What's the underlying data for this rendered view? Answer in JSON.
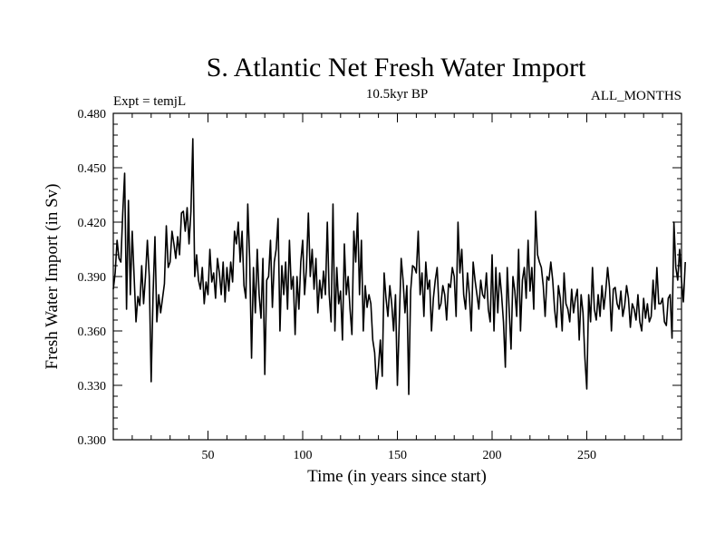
{
  "chart_data": {
    "type": "line",
    "title": "S. Atlantic Net Fresh Water Import",
    "subtitle_left": "Expt = temjL",
    "subtitle_center": "10.5kyr BP",
    "subtitle_right": "ALL_MONTHS",
    "xlabel": "Time (in years since start)",
    "ylabel": "Fresh Water Import (in Sv)",
    "xlim": [
      0,
      300
    ],
    "ylim": [
      0.3,
      0.48
    ],
    "xticks": [
      50,
      100,
      150,
      200,
      250
    ],
    "yticks": [
      "0.300",
      "0.330",
      "0.360",
      "0.390",
      "0.420",
      "0.450",
      "0.480"
    ],
    "series": [
      {
        "name": "Fresh Water Import",
        "color": "#000000",
        "x_start": 0,
        "x_step": 1,
        "values": [
          0.383,
          0.392,
          0.41,
          0.4,
          0.398,
          0.425,
          0.447,
          0.372,
          0.432,
          0.38,
          0.415,
          0.39,
          0.365,
          0.379,
          0.374,
          0.396,
          0.375,
          0.39,
          0.41,
          0.39,
          0.332,
          0.38,
          0.412,
          0.365,
          0.38,
          0.37,
          0.378,
          0.386,
          0.418,
          0.395,
          0.398,
          0.415,
          0.408,
          0.4,
          0.412,
          0.402,
          0.425,
          0.426,
          0.415,
          0.428,
          0.408,
          0.426,
          0.466,
          0.39,
          0.402,
          0.388,
          0.383,
          0.395,
          0.375,
          0.387,
          0.38,
          0.405,
          0.387,
          0.392,
          0.378,
          0.4,
          0.392,
          0.38,
          0.398,
          0.376,
          0.395,
          0.382,
          0.398,
          0.387,
          0.415,
          0.408,
          0.42,
          0.398,
          0.415,
          0.385,
          0.378,
          0.43,
          0.4,
          0.345,
          0.395,
          0.37,
          0.405,
          0.38,
          0.367,
          0.4,
          0.336,
          0.388,
          0.39,
          0.41,
          0.373,
          0.398,
          0.405,
          0.422,
          0.36,
          0.396,
          0.38,
          0.398,
          0.372,
          0.41,
          0.383,
          0.39,
          0.358,
          0.39,
          0.372,
          0.398,
          0.41,
          0.38,
          0.395,
          0.425,
          0.39,
          0.405,
          0.383,
          0.4,
          0.37,
          0.388,
          0.378,
          0.393,
          0.38,
          0.42,
          0.38,
          0.365,
          0.43,
          0.36,
          0.395,
          0.375,
          0.382,
          0.355,
          0.408,
          0.38,
          0.39,
          0.372,
          0.358,
          0.415,
          0.398,
          0.425,
          0.38,
          0.41,
          0.36,
          0.385,
          0.373,
          0.38,
          0.375,
          0.355,
          0.348,
          0.328,
          0.34,
          0.355,
          0.335,
          0.392,
          0.378,
          0.368,
          0.385,
          0.375,
          0.36,
          0.38,
          0.33,
          0.365,
          0.4,
          0.388,
          0.37,
          0.385,
          0.325,
          0.382,
          0.396,
          0.395,
          0.392,
          0.415,
          0.38,
          0.392,
          0.368,
          0.398,
          0.383,
          0.388,
          0.36,
          0.378,
          0.388,
          0.395,
          0.372,
          0.375,
          0.385,
          0.38,
          0.366,
          0.386,
          0.384,
          0.395,
          0.39,
          0.368,
          0.42,
          0.392,
          0.405,
          0.38,
          0.372,
          0.392,
          0.38,
          0.36,
          0.398,
          0.388,
          0.38,
          0.372,
          0.388,
          0.38,
          0.378,
          0.392,
          0.372,
          0.365,
          0.402,
          0.36,
          0.395,
          0.37,
          0.392,
          0.38,
          0.365,
          0.34,
          0.395,
          0.372,
          0.35,
          0.39,
          0.382,
          0.368,
          0.405,
          0.36,
          0.388,
          0.395,
          0.378,
          0.41,
          0.382,
          0.395,
          0.372,
          0.426,
          0.402,
          0.398,
          0.395,
          0.385,
          0.368,
          0.39,
          0.388,
          0.398,
          0.388,
          0.372,
          0.362,
          0.385,
          0.378,
          0.36,
          0.392,
          0.375,
          0.372,
          0.365,
          0.383,
          0.37,
          0.378,
          0.383,
          0.355,
          0.38,
          0.37,
          0.345,
          0.328,
          0.38,
          0.365,
          0.395,
          0.372,
          0.366,
          0.38,
          0.368,
          0.385,
          0.372,
          0.382,
          0.395,
          0.384,
          0.36,
          0.383,
          0.384,
          0.375,
          0.372,
          0.382,
          0.368,
          0.374,
          0.385,
          0.378,
          0.362,
          0.375,
          0.372,
          0.366,
          0.38,
          0.365,
          0.36,
          0.378,
          0.367,
          0.375,
          0.365,
          0.368,
          0.388,
          0.372,
          0.395,
          0.375,
          0.375,
          0.378,
          0.365,
          0.363,
          0.378,
          0.38,
          0.356,
          0.42,
          0.395,
          0.388,
          0.405,
          0.388,
          0.376,
          0.398
        ]
      }
    ]
  }
}
